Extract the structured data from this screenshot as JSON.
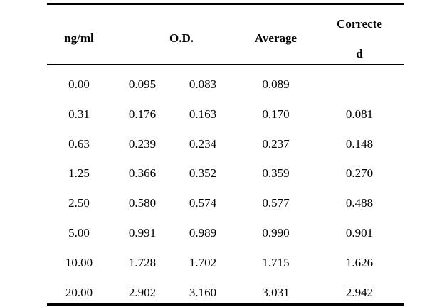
{
  "table": {
    "headers": {
      "concentration": "ng/ml",
      "od": "O.D.",
      "average": "Average",
      "corrected_line1": "Correcte",
      "corrected_line2": "d"
    },
    "rows": [
      {
        "conc": "0.00",
        "od1": "0.095",
        "od2": "0.083",
        "avg": "0.089",
        "corr": ""
      },
      {
        "conc": "0.31",
        "od1": "0.176",
        "od2": "0.163",
        "avg": "0.170",
        "corr": "0.081"
      },
      {
        "conc": "0.63",
        "od1": "0.239",
        "od2": "0.234",
        "avg": "0.237",
        "corr": "0.148"
      },
      {
        "conc": "1.25",
        "od1": "0.366",
        "od2": "0.352",
        "avg": "0.359",
        "corr": "0.270"
      },
      {
        "conc": "2.50",
        "od1": "0.580",
        "od2": "0.574",
        "avg": "0.577",
        "corr": "0.488"
      },
      {
        "conc": "5.00",
        "od1": "0.991",
        "od2": "0.989",
        "avg": "0.990",
        "corr": "0.901"
      },
      {
        "conc": "10.00",
        "od1": "1.728",
        "od2": "1.702",
        "avg": "1.715",
        "corr": "1.626"
      },
      {
        "conc": "20.00",
        "od1": "2.902",
        "od2": "3.160",
        "avg": "3.031",
        "corr": "2.942"
      }
    ]
  }
}
